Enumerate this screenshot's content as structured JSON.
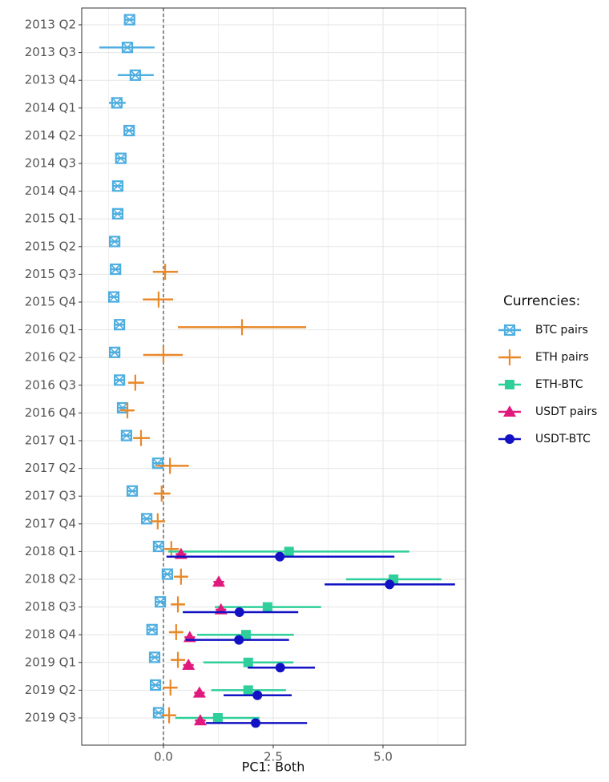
{
  "chart_data": {
    "type": "dot-whisker",
    "orientation": "horizontal",
    "x_label": "PC1: Both",
    "legend_title": "Currencies:",
    "legend_position": "right",
    "categories": [
      "2013 Q2",
      "2013 Q3",
      "2013 Q4",
      "2014 Q1",
      "2014 Q2",
      "2014 Q3",
      "2014 Q4",
      "2015 Q1",
      "2015 Q2",
      "2015 Q3",
      "2015 Q4",
      "2016 Q1",
      "2016 Q2",
      "2016 Q3",
      "2016 Q4",
      "2017 Q1",
      "2017 Q2",
      "2017 Q3",
      "2017 Q4",
      "2018 Q1",
      "2018 Q2",
      "2018 Q3",
      "2018 Q4",
      "2019 Q1",
      "2019 Q2",
      "2019 Q3"
    ],
    "xlim": [
      -1.86,
      6.88
    ],
    "xticks": [
      {
        "value": 0,
        "label": "0.0"
      },
      {
        "value": 2.5,
        "label": "2.5"
      },
      {
        "value": 5,
        "label": "5.0"
      }
    ],
    "x_minor_grid": [
      -1.25,
      1.25,
      3.75,
      6.25
    ],
    "vline": 0,
    "grid": true,
    "series": [
      {
        "name": "BTC pairs",
        "color": "#4eaee0",
        "shape": "square-x",
        "values": [
          -0.77,
          -0.82,
          -0.64,
          -1.06,
          -0.78,
          -0.97,
          -1.04,
          -1.04,
          -1.11,
          -1.09,
          -1.13,
          -1.0,
          -1.11,
          -1.0,
          -0.93,
          -0.84,
          -0.13,
          -0.71,
          -0.38,
          -0.11,
          0.09,
          -0.07,
          -0.26,
          -0.2,
          -0.18,
          -0.11
        ],
        "lower": [
          -0.87,
          -1.46,
          -1.04,
          -1.24,
          -0.89,
          -1.07,
          -1.14,
          -1.14,
          -1.21,
          -1.19,
          -1.23,
          -1.1,
          -1.21,
          -1.1,
          -1.03,
          -0.94,
          -0.23,
          -0.81,
          -0.48,
          -0.21,
          -0.01,
          -0.17,
          -0.36,
          -0.3,
          -0.28,
          -0.21
        ],
        "upper": [
          -0.67,
          -0.2,
          -0.22,
          -0.86,
          -0.66,
          -0.87,
          -0.94,
          -0.94,
          -1.01,
          -0.99,
          -1.03,
          -0.9,
          -1.01,
          -0.9,
          -0.83,
          -0.74,
          -0.03,
          -0.61,
          -0.28,
          -0.01,
          0.19,
          0.03,
          -0.16,
          -0.1,
          -0.08,
          -0.01
        ]
      },
      {
        "name": "ETH pairs",
        "color": "#e8892a",
        "shape": "plus",
        "values": [
          null,
          null,
          null,
          null,
          null,
          null,
          null,
          null,
          null,
          0.04,
          -0.11,
          1.79,
          0.0,
          -0.64,
          -0.82,
          -0.51,
          0.15,
          -0.04,
          -0.13,
          0.18,
          0.4,
          0.33,
          0.29,
          0.33,
          0.16,
          0.13
        ],
        "lower": [
          null,
          null,
          null,
          null,
          null,
          null,
          null,
          null,
          null,
          -0.24,
          -0.47,
          0.33,
          -0.46,
          -0.8,
          -0.97,
          -0.69,
          -0.16,
          -0.22,
          -0.29,
          0.04,
          0.26,
          0.18,
          0.14,
          0.18,
          0.01,
          -0.02
        ],
        "upper": [
          null,
          null,
          null,
          null,
          null,
          null,
          null,
          null,
          null,
          0.33,
          0.22,
          3.25,
          0.44,
          -0.44,
          -0.68,
          -0.31,
          0.58,
          0.16,
          0.04,
          0.35,
          0.55,
          0.48,
          0.44,
          0.48,
          0.31,
          0.28
        ]
      },
      {
        "name": "ETH-BTC",
        "color": "#2ecf9a",
        "shape": "square",
        "values": [
          null,
          null,
          null,
          null,
          null,
          null,
          null,
          null,
          null,
          null,
          null,
          null,
          null,
          null,
          null,
          null,
          null,
          null,
          null,
          2.86,
          5.24,
          2.37,
          1.88,
          1.93,
          1.93,
          1.24
        ],
        "lower": [
          null,
          null,
          null,
          null,
          null,
          null,
          null,
          null,
          null,
          null,
          null,
          null,
          null,
          null,
          null,
          null,
          null,
          null,
          null,
          0.11,
          4.16,
          1.17,
          0.77,
          0.91,
          1.09,
          0.27
        ],
        "upper": [
          null,
          null,
          null,
          null,
          null,
          null,
          null,
          null,
          null,
          null,
          null,
          null,
          null,
          null,
          null,
          null,
          null,
          null,
          null,
          5.6,
          6.33,
          3.59,
          2.97,
          2.96,
          2.79,
          2.19
        ]
      },
      {
        "name": "USDT pairs",
        "color": "#e0197d",
        "shape": "triangle",
        "values": [
          null,
          null,
          null,
          null,
          null,
          null,
          null,
          null,
          null,
          null,
          null,
          null,
          null,
          null,
          null,
          null,
          null,
          null,
          null,
          0.4,
          1.26,
          1.31,
          0.6,
          0.57,
          0.82,
          0.84
        ],
        "lower": [
          null,
          null,
          null,
          null,
          null,
          null,
          null,
          null,
          null,
          null,
          null,
          null,
          null,
          null,
          null,
          null,
          null,
          null,
          null,
          0.28,
          1.14,
          1.19,
          0.48,
          0.45,
          0.7,
          0.72
        ],
        "upper": [
          null,
          null,
          null,
          null,
          null,
          null,
          null,
          null,
          null,
          null,
          null,
          null,
          null,
          null,
          null,
          null,
          null,
          null,
          null,
          0.52,
          1.38,
          1.43,
          0.72,
          0.69,
          0.94,
          0.96
        ]
      },
      {
        "name": "USDT-BTC",
        "color": "#1212c4",
        "shape": "circle",
        "values": [
          null,
          null,
          null,
          null,
          null,
          null,
          null,
          null,
          null,
          null,
          null,
          null,
          null,
          null,
          null,
          null,
          null,
          null,
          null,
          2.65,
          5.15,
          1.73,
          1.72,
          2.66,
          2.14,
          2.1
        ],
        "lower": [
          null,
          null,
          null,
          null,
          null,
          null,
          null,
          null,
          null,
          null,
          null,
          null,
          null,
          null,
          null,
          null,
          null,
          null,
          null,
          0.07,
          3.67,
          0.44,
          0.51,
          1.92,
          1.37,
          0.97
        ],
        "upper": [
          null,
          null,
          null,
          null,
          null,
          null,
          null,
          null,
          null,
          null,
          null,
          null,
          null,
          null,
          null,
          null,
          null,
          null,
          null,
          5.26,
          6.64,
          3.07,
          2.86,
          3.45,
          2.92,
          3.27
        ]
      }
    ]
  }
}
